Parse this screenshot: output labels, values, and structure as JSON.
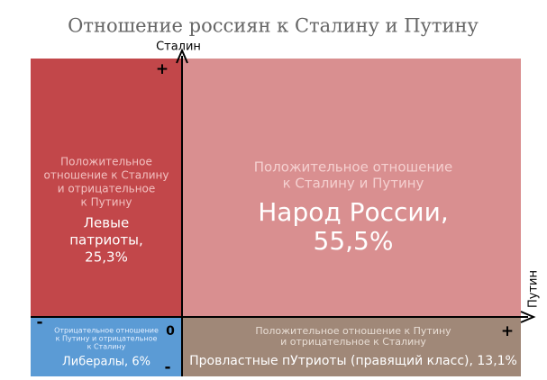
{
  "title": "Отношение россиян к Сталину и Путину",
  "axes": {
    "y_label": "Сталин",
    "x_label": "Путин",
    "origin": "0",
    "y_plus": "+",
    "x_plus": "+",
    "x_minus": "-",
    "y_minus": "-"
  },
  "quadrants": [
    {
      "description": [
        "Положительное",
        "отношение к Сталину",
        "и отрицательное",
        "к Путину"
      ],
      "label": [
        "Левые",
        "патриоты,",
        "25,3%"
      ]
    },
    {
      "description": [
        "Положительное отношение",
        "к Сталину и Путину"
      ],
      "label": [
        "Народ России,",
        "55,5%"
      ]
    },
    {
      "description": [
        "Отрицательное отношение",
        "к Путину и отрицательное",
        "к Сталину"
      ],
      "label": [
        "Либералы, 6%"
      ]
    },
    {
      "description": [
        "Положительное отношение к Путину",
        "и отрицательное к Сталину"
      ],
      "label": [
        "Провластные пУтриоты (правящий класс), 13,1%"
      ]
    }
  ]
}
